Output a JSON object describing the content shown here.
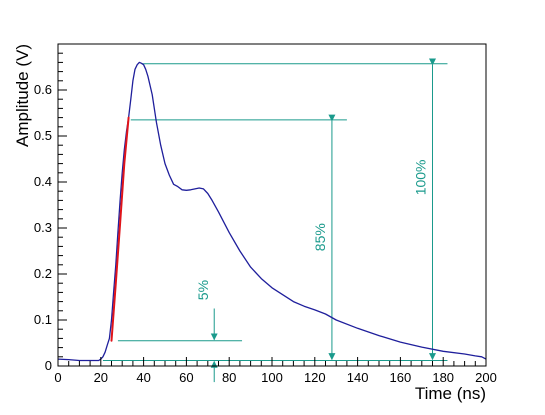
{
  "colors": {
    "signal": "#1f1f9c",
    "fit": "#e0141a",
    "annotation": "#1a9a8c",
    "axis": "#000000"
  },
  "chart_data": {
    "type": "line",
    "title": "",
    "xlabel": "Time (ns)",
    "ylabel": "Amplitude (V)",
    "xlim": [
      0,
      200
    ],
    "ylim": [
      0,
      0.7
    ],
    "x_ticks": [
      0,
      20,
      40,
      60,
      80,
      100,
      120,
      140,
      160,
      180,
      200
    ],
    "y_ticks": [
      0,
      0.1,
      0.2,
      0.3,
      0.4,
      0.5,
      0.6
    ],
    "grid": false,
    "series": [
      {
        "x": [
          0,
          5,
          10,
          15,
          19,
          20,
          21,
          22,
          23,
          24,
          25,
          26,
          27,
          28,
          29,
          30,
          31,
          32,
          33,
          34,
          35,
          36,
          37,
          38,
          39,
          40,
          41,
          42,
          44,
          46,
          48,
          50,
          52,
          54,
          56,
          58,
          60,
          62,
          64,
          66,
          68,
          70,
          72,
          75,
          80,
          85,
          90,
          95,
          100,
          105,
          110,
          115,
          120,
          125,
          130,
          140,
          150,
          160,
          170,
          180,
          190,
          195,
          198,
          200
        ],
        "y": [
          0.015,
          0.014,
          0.012,
          0.012,
          0.012,
          0.015,
          0.02,
          0.03,
          0.045,
          0.06,
          0.1,
          0.16,
          0.22,
          0.29,
          0.36,
          0.42,
          0.47,
          0.51,
          0.54,
          0.58,
          0.62,
          0.645,
          0.655,
          0.66,
          0.658,
          0.655,
          0.645,
          0.63,
          0.59,
          0.53,
          0.48,
          0.44,
          0.415,
          0.395,
          0.39,
          0.383,
          0.382,
          0.383,
          0.385,
          0.387,
          0.385,
          0.375,
          0.36,
          0.335,
          0.29,
          0.25,
          0.215,
          0.19,
          0.17,
          0.155,
          0.14,
          0.13,
          0.122,
          0.113,
          0.1,
          0.082,
          0.066,
          0.052,
          0.041,
          0.032,
          0.026,
          0.022,
          0.02,
          0.015
        ]
      },
      {
        "x": [
          25,
          27,
          29,
          31,
          33
        ],
        "y": [
          0.055,
          0.18,
          0.31,
          0.44,
          0.54
        ]
      }
    ],
    "annotations": [
      {
        "label": "5%",
        "level": 0.055,
        "arrow_x": 73
      },
      {
        "label": "85%",
        "level": 0.535,
        "arrow_x": 128
      },
      {
        "label": "100%",
        "level": 0.657,
        "arrow_x": 175
      }
    ],
    "baseline_level": 0.012
  }
}
